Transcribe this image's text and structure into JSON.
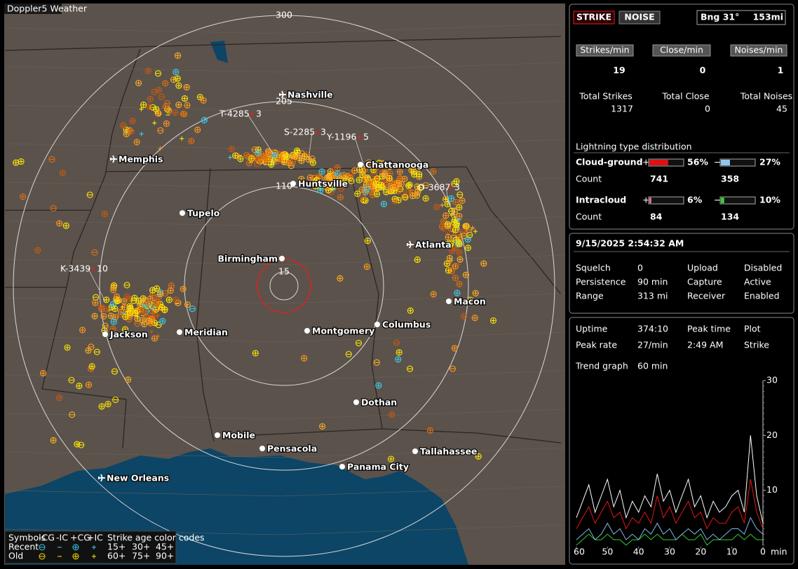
{
  "app_title": "Doppler5 Weather",
  "map": {
    "range_rings": [
      "300",
      "205",
      "110",
      "15"
    ],
    "cities": [
      "Nashville",
      "Memphis",
      "Chattanooga",
      "Huntsville",
      "Tupelo",
      "Birmingham",
      "Atlanta",
      "Macon",
      "Jackson",
      "Meridian",
      "Montgomery",
      "Columbus",
      "Dothan",
      "Mobile",
      "Pensacola",
      "Panama City",
      "Tallahassee",
      "New Orleans"
    ],
    "storm_tags": [
      {
        "id": "T-4285",
        "count": "3"
      },
      {
        "id": "S-2285",
        "count": "3"
      },
      {
        "id": "Y-1196",
        "count": "5"
      },
      {
        "id": "O-3687",
        "count": "3"
      },
      {
        "id": "K-3439",
        "count": "10"
      }
    ],
    "legend": {
      "symbols": "Symbols",
      "headers": [
        "-CG",
        "-IC",
        "+CG",
        "+IC"
      ],
      "age_title": "Strike age color codes",
      "rows": [
        {
          "label": "Recent",
          "ages": [
            "15+",
            "30+",
            "45+"
          ]
        },
        {
          "label": "Old",
          "ages": [
            "60+",
            "75+",
            "90+"
          ]
        }
      ]
    }
  },
  "status": {
    "buttons": [
      "STRIKE",
      "NOISE"
    ],
    "bearing": "Bng 31°",
    "distance": "153mi"
  },
  "rates": [
    {
      "label": "Strikes/min",
      "value": 19,
      "total_label": "Total Strikes",
      "total": 1317
    },
    {
      "label": "Close/min",
      "value": 0,
      "total_label": "Total Close",
      "total": 0
    },
    {
      "label": "Noises/min",
      "value": 1,
      "total_label": "Total Noises",
      "total": 45
    }
  ],
  "distribution": {
    "title": "Lightning type distribution",
    "rows": [
      {
        "type": "Cloud-ground",
        "pos_sign": "+",
        "pos": {
          "value": 56,
          "label": "56%"
        },
        "neg_sign": "−",
        "neg": {
          "value": 27,
          "label": "27%"
        },
        "count_label": "Count",
        "pos_count": 741,
        "neg_count": 358
      },
      {
        "type": "Intracloud",
        "pos_sign": "+",
        "pos": {
          "value": 6,
          "label": "6%"
        },
        "neg_sign": "−",
        "neg": {
          "value": 10,
          "label": "10%"
        },
        "count_label": "Count",
        "pos_count": 84,
        "neg_count": 134
      }
    ]
  },
  "clock": "9/15/2025 2:54:32 AM",
  "settings": [
    {
      "label": "Squelch",
      "value": "0"
    },
    {
      "label": "Persistence",
      "value": "90 min"
    },
    {
      "label": "Range",
      "value": "313 mi"
    },
    {
      "label": "Upload",
      "value": "Disabled"
    },
    {
      "label": "Capture",
      "value": "Active"
    },
    {
      "label": "Receiver",
      "value": "Enabled"
    }
  ],
  "stats": [
    {
      "label": "Uptime",
      "value": "374:10"
    },
    {
      "label": "Peak rate",
      "value": "27/min"
    },
    {
      "label": "Peak time",
      "value": "2:49 AM"
    },
    {
      "label": "Plot",
      "value": "Strike"
    }
  ],
  "trend": {
    "label": "Trend graph",
    "window": "60 min",
    "x_unit": "min",
    "xlim": [
      60,
      0
    ],
    "xticks": [
      60,
      50,
      40,
      30,
      20,
      10,
      0
    ],
    "ylim": [
      0,
      30
    ],
    "yticks": [
      10,
      20,
      30
    ],
    "x": [
      60,
      58,
      56,
      54,
      52,
      50,
      48,
      46,
      44,
      42,
      40,
      38,
      36,
      34,
      32,
      30,
      28,
      26,
      24,
      22,
      20,
      18,
      16,
      14,
      12,
      10,
      8,
      6,
      4,
      2,
      0
    ],
    "series": [
      {
        "color": "#ffffff",
        "values": [
          5,
          8,
          11,
          6,
          9,
          12,
          7,
          10,
          5,
          8,
          6,
          9,
          7,
          13,
          8,
          10,
          6,
          9,
          12,
          7,
          9,
          5,
          8,
          6,
          7,
          9,
          10,
          6,
          20,
          9,
          4
        ]
      },
      {
        "color": "#e01818",
        "values": [
          3,
          5,
          7,
          4,
          6,
          8,
          5,
          6,
          3,
          5,
          4,
          6,
          4,
          9,
          5,
          7,
          4,
          6,
          8,
          5,
          6,
          3,
          5,
          4,
          4,
          6,
          7,
          4,
          12,
          6,
          3
        ]
      },
      {
        "color": "#7fb8e8",
        "values": [
          1,
          2,
          3,
          1,
          2,
          4,
          2,
          3,
          1,
          2,
          1,
          3,
          2,
          4,
          2,
          3,
          1,
          2,
          3,
          2,
          3,
          1,
          2,
          1,
          2,
          3,
          3,
          2,
          5,
          3,
          2
        ]
      },
      {
        "color": "#30d030",
        "values": [
          0,
          1,
          2,
          1,
          1,
          2,
          1,
          1,
          0,
          1,
          1,
          2,
          1,
          2,
          1,
          1,
          1,
          2,
          1,
          1,
          2,
          0,
          1,
          1,
          1,
          1,
          2,
          1,
          2,
          1,
          1
        ]
      }
    ]
  }
}
